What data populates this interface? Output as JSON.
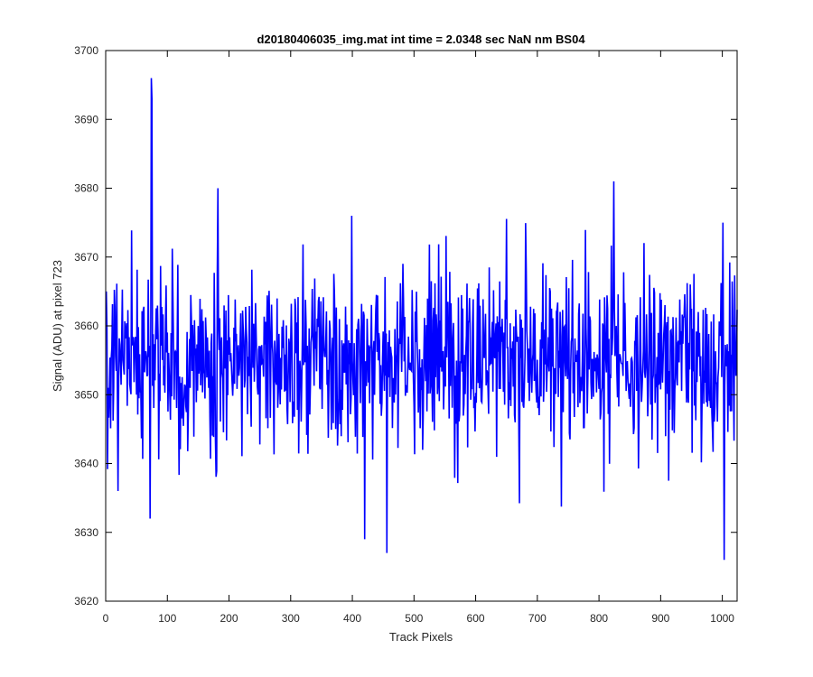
{
  "chart_data": {
    "type": "line",
    "title": "d20180406035_img.mat int time = 2.0348 sec  NaN nm BS04",
    "xlabel": "Track Pixels",
    "ylabel": "Signal (ADU) at pixel 723",
    "xlim": [
      0,
      1024
    ],
    "ylim": [
      3620,
      3700
    ],
    "xticks": [
      0,
      100,
      200,
      300,
      400,
      500,
      600,
      700,
      800,
      900,
      1000
    ],
    "yticks": [
      3620,
      3630,
      3640,
      3650,
      3660,
      3670,
      3680,
      3690,
      3700
    ],
    "grid": false,
    "series": [
      {
        "color": "#0000ff",
        "x_start": 1,
        "x_step": 1,
        "count": 1024,
        "mean": 3655,
        "notable_points": [
          {
            "x": 74,
            "y": 3696
          },
          {
            "x": 75,
            "y": 3693
          },
          {
            "x": 72,
            "y": 3632
          },
          {
            "x": 399,
            "y": 3676
          },
          {
            "x": 420,
            "y": 3629
          },
          {
            "x": 456,
            "y": 3627
          },
          {
            "x": 824,
            "y": 3681
          },
          {
            "x": 1003,
            "y": 3626
          },
          {
            "x": 1001,
            "y": 3675
          }
        ]
      }
    ]
  }
}
